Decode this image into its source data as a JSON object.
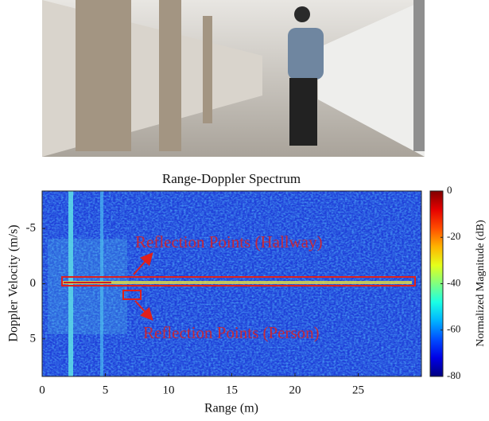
{
  "chart_data": {
    "type": "heatmap",
    "title": "Range-Doppler Spectrum",
    "xlabel": "Range (m)",
    "ylabel": "Doppler Velocity (m/s)",
    "xlim": [
      0,
      30
    ],
    "xticks": [
      0,
      5,
      10,
      15,
      20,
      25
    ],
    "ylim": [
      8.4,
      -8.4
    ],
    "yticks": [
      -5,
      0,
      5
    ],
    "colormap": "jet",
    "colorbar_label": "Normalized Magnitude (dB)",
    "clim": [
      -80,
      0
    ],
    "cticks": [
      0,
      -20,
      -40,
      -60,
      -80
    ],
    "annotations": [
      "Reflection Points (Hallway)",
      "Reflection Points (Person)"
    ]
  }
}
